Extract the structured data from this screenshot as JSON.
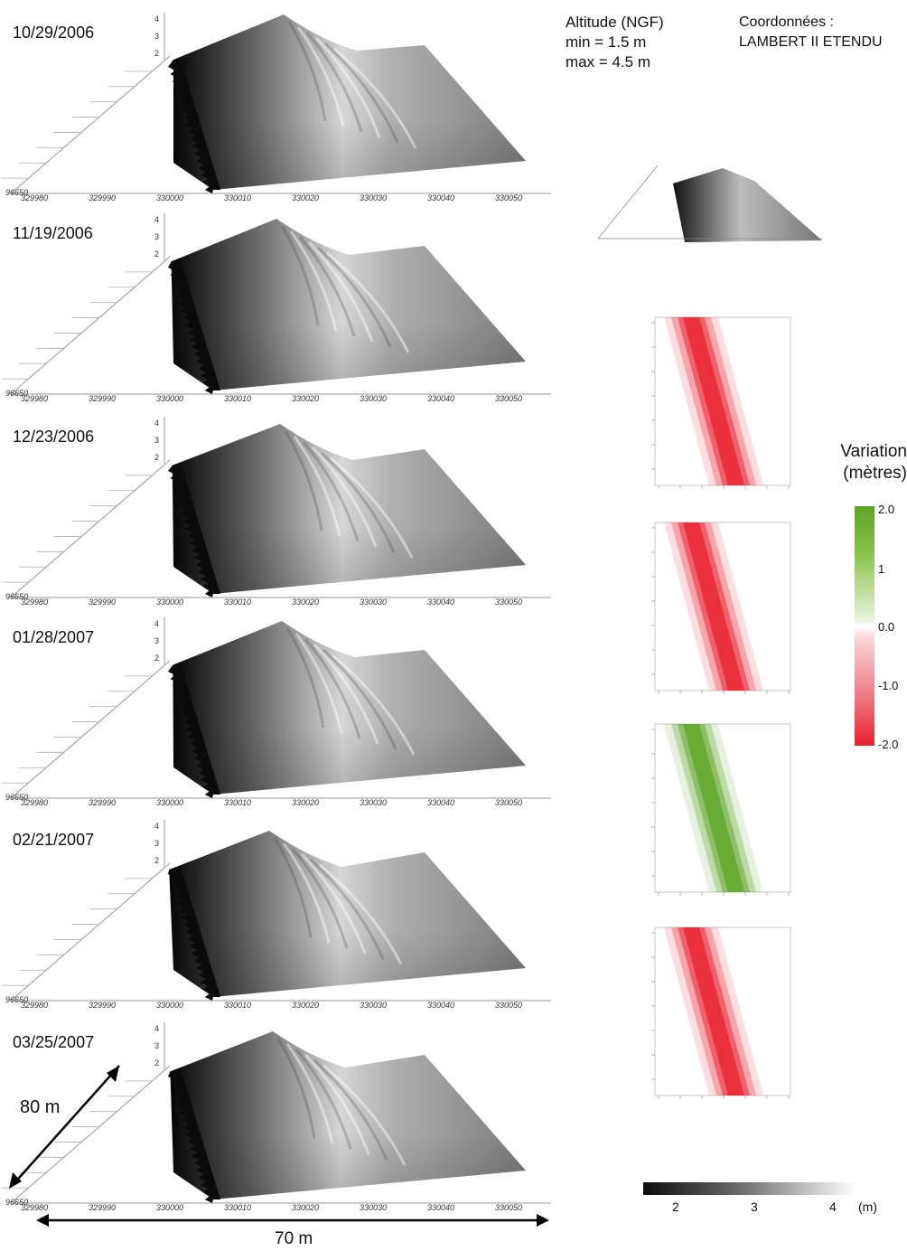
{
  "header": {
    "altitude_title": "Altitude (NGF)",
    "altitude_min": "min = 1.5 m",
    "altitude_max": "max = 4.5 m",
    "coords_title": "Coordonnées :",
    "coords_system": "LAMBERT II ETENDU"
  },
  "panels": [
    {
      "date": "10/29/2006"
    },
    {
      "date": "11/19/2006"
    },
    {
      "date": "12/23/2006"
    },
    {
      "date": "01/28/2007"
    },
    {
      "date": "02/21/2007"
    },
    {
      "date": "03/25/2007"
    }
  ],
  "axes": {
    "x_ticks": [
      "329980",
      "329990",
      "330000",
      "330010",
      "330020",
      "330030",
      "330040",
      "330050"
    ],
    "z_ticks": [
      "4",
      "3",
      "2"
    ],
    "y_corner": "96650"
  },
  "variation_legend": {
    "title_line1": "Variation",
    "title_line2": "(mètres)",
    "ticks": [
      "2.0",
      "1",
      "0.0",
      "-1.0",
      "-2.0"
    ],
    "positive_color": "#5ca425",
    "negative_color": "#e8202d"
  },
  "difference_maps": [
    {
      "sign": "loss"
    },
    {
      "sign": "loss"
    },
    {
      "sign": "gain"
    },
    {
      "sign": "loss"
    }
  ],
  "altitude_scale": {
    "ticks": [
      "2",
      "3",
      "4"
    ],
    "unit": "(m)"
  },
  "dimensions": {
    "depth": "80 m",
    "width": "70 m"
  },
  "chart_data": {
    "type": "heatmap",
    "title": "",
    "dates": [
      "10/29/2006",
      "11/19/2006",
      "12/23/2006",
      "01/28/2007",
      "02/21/2007",
      "03/25/2007"
    ],
    "altitude_range_m": [
      1.5,
      4.5
    ],
    "x_ticks": [
      329980,
      329990,
      330000,
      330010,
      330020,
      330030,
      330040,
      330050
    ],
    "z_ticks": [
      4,
      3,
      2
    ],
    "variation_range_m": [
      -2.0,
      2.0
    ],
    "variation_ticks": [
      2.0,
      1,
      0.0,
      -1.0,
      -2.0
    ],
    "altitude_colorbar_ticks": [
      2,
      3,
      4
    ],
    "extent": {
      "depth_m": 80,
      "width_m": 70
    }
  }
}
